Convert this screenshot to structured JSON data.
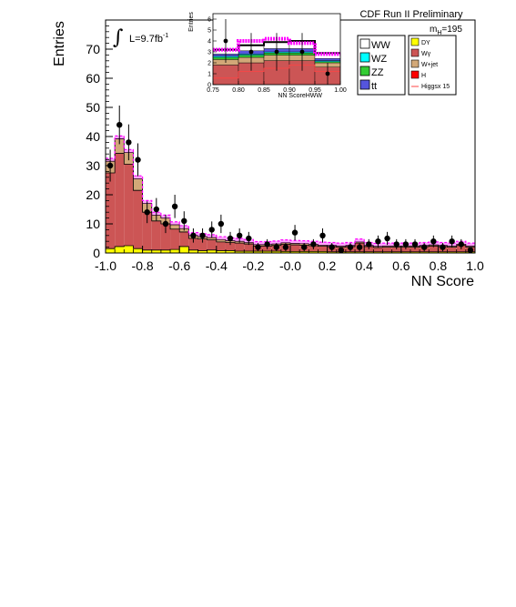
{
  "chart_data": {
    "type": "bar",
    "title": "CDF Run II Preliminary",
    "xlabel": "NN Score",
    "ylabel": "Entries",
    "xlim": [
      -1.0,
      1.0
    ],
    "ylim": [
      0,
      80
    ],
    "x_tick_labels": [
      "-1.0",
      "-0.8",
      "-0.6",
      "-0.4",
      "-0.2",
      "-0.0",
      "0.2",
      "0.4",
      "0.6",
      "0.8",
      "1.0"
    ],
    "y_tick_labels": [
      "0",
      "10",
      "20",
      "30",
      "40",
      "50",
      "60",
      "70"
    ],
    "annotations": {
      "luminosity_prefix": "L=9.7fb",
      "luminosity_exp": "-1",
      "mass_prefix": "m",
      "mass_sub": "H",
      "mass_suffix": "=195"
    },
    "bin_edges": [
      -1.0,
      -0.95,
      -0.9,
      -0.85,
      -0.8,
      -0.75,
      -0.7,
      -0.65,
      -0.6,
      -0.55,
      -0.5,
      -0.45,
      -0.4,
      -0.35,
      -0.3,
      -0.25,
      -0.2,
      -0.15,
      -0.1,
      -0.05,
      0.0,
      0.05,
      0.1,
      0.15,
      0.2,
      0.25,
      0.3,
      0.35,
      0.4,
      0.45,
      0.5,
      0.55,
      0.6,
      0.65,
      0.7,
      0.75,
      0.8,
      0.85,
      0.9,
      0.95,
      1.0
    ],
    "stack": [
      {
        "name": "DY",
        "color": "#ffff00",
        "values": [
          1.5,
          2.2,
          2.5,
          1.5,
          1.0,
          1.0,
          1.0,
          1.2,
          2.2,
          1.0,
          0.8,
          1.0,
          0.8,
          0.8,
          0.6,
          0.6,
          0.6,
          0.6,
          0.6,
          0.5,
          0.5,
          0.5,
          0.5,
          0.5,
          0.4,
          0.4,
          0.4,
          0.4,
          0.4,
          0.4,
          0.4,
          0.4,
          0.4,
          0.4,
          0.4,
          0.4,
          0.4,
          0.4,
          0.4,
          0.4
        ]
      },
      {
        "name": "Wγ",
        "color": "#cc5555",
        "values": [
          26,
          32,
          28,
          20,
          13,
          10,
          9,
          7,
          5,
          4,
          4,
          3.5,
          3,
          2.8,
          2.8,
          2.5,
          1.8,
          1.8,
          2,
          2.5,
          2.3,
          2.2,
          2,
          1.8,
          1.8,
          1.6,
          1.8,
          3,
          1.8,
          1.5,
          1.6,
          1.6,
          1.6,
          1.6,
          1.8,
          2,
          1.8,
          1.6,
          2.2,
          1.6
        ]
      },
      {
        "name": "W+jet",
        "color": "#d2a878",
        "values": [
          4,
          5,
          4,
          4,
          3,
          2,
          2,
          1.5,
          1.2,
          1,
          0.8,
          0.8,
          0.8,
          0.6,
          0.6,
          0.5,
          0.5,
          0.5,
          0.5,
          0.5,
          0.5,
          0.5,
          0.5,
          0.4,
          0.4,
          0.4,
          0.4,
          0.4,
          0.4,
          0.4,
          0.4,
          0.4,
          0.4,
          0.4,
          0.4,
          0.4,
          0.4,
          0.4,
          0.4,
          0.4
        ]
      }
    ],
    "signal": {
      "name": "Higgsx 15",
      "color": "#ff00ff",
      "values": [
        1,
        1,
        1,
        1,
        1,
        1,
        1,
        1,
        1,
        1,
        1,
        1,
        1,
        1,
        1,
        1,
        1,
        1,
        1,
        1,
        1,
        1,
        1,
        1,
        1,
        1,
        1,
        1,
        1,
        1,
        1,
        1,
        1,
        1,
        1,
        1,
        1,
        1,
        1,
        1
      ]
    },
    "data_points": {
      "x": [
        -0.975,
        -0.925,
        -0.875,
        -0.825,
        -0.775,
        -0.725,
        -0.675,
        -0.625,
        -0.575,
        -0.525,
        -0.475,
        -0.425,
        -0.375,
        -0.325,
        -0.275,
        -0.225,
        -0.175,
        -0.125,
        -0.075,
        -0.025,
        0.025,
        0.075,
        0.125,
        0.175,
        0.225,
        0.275,
        0.325,
        0.375,
        0.425,
        0.475,
        0.525,
        0.575,
        0.625,
        0.675,
        0.725,
        0.775,
        0.825,
        0.875,
        0.925,
        0.975
      ],
      "y": [
        30,
        44,
        38,
        32,
        14,
        15,
        10,
        16,
        11,
        6,
        6,
        8,
        10,
        5,
        6,
        5,
        2,
        3,
        2,
        2,
        7,
        2,
        3,
        6,
        2,
        1,
        2,
        2,
        3,
        4,
        5,
        3,
        3,
        3,
        2,
        4,
        2,
        4,
        3,
        1
      ]
    },
    "legend": {
      "left": [
        {
          "name": "WW",
          "color": "#ffffff"
        },
        {
          "name": "WZ",
          "color": "#00ffff"
        },
        {
          "name": "ZZ",
          "color": "#33cc33"
        },
        {
          "name": "tt",
          "color": "#5555dd"
        }
      ],
      "right": [
        {
          "name": "DY",
          "color": "#ffff00"
        },
        {
          "name": "Wγ",
          "color": "#cc5555"
        },
        {
          "name": "W+jet",
          "color": "#d2a878"
        },
        {
          "name": "H",
          "color": "#ff0000"
        },
        {
          "name": "Higgsx 15",
          "color": "#ff4444"
        }
      ]
    },
    "inset": {
      "xlabel": "NN ScoreHWW",
      "ylabel": "Entries",
      "xlim": [
        0.75,
        1.0
      ],
      "ylim": [
        0,
        6.5
      ],
      "x_tick_labels": [
        "0.75",
        "0.80",
        "0.85",
        "0.90",
        "0.95",
        "1.00"
      ],
      "y_tick_labels": [
        "0",
        "1",
        "2",
        "3",
        "4",
        "5",
        "6"
      ],
      "bin_edges": [
        0.75,
        0.8,
        0.85,
        0.9,
        0.95,
        1.0
      ],
      "stack": [
        {
          "name": "Wγ",
          "color": "#cc5555",
          "values": [
            1.8,
            2.0,
            2.2,
            2.2,
            1.6
          ]
        },
        {
          "name": "W+jet",
          "color": "#d2a878",
          "values": [
            0.5,
            0.5,
            0.5,
            0.5,
            0.4
          ]
        },
        {
          "name": "ZZ",
          "color": "#33cc33",
          "values": [
            0.2,
            0.2,
            0.2,
            0.2,
            0.1
          ]
        },
        {
          "name": "WZ",
          "color": "#00ffff",
          "values": [
            0.1,
            0.1,
            0.1,
            0.1,
            0.1
          ]
        },
        {
          "name": "tt",
          "color": "#5555dd",
          "values": [
            0.2,
            0.3,
            0.3,
            0.3,
            0.2
          ]
        },
        {
          "name": "WW",
          "color": "#ffffff",
          "values": [
            0.4,
            0.5,
            0.6,
            0.7,
            0.5
          ]
        }
      ],
      "signal": {
        "color": "#ff00ff",
        "values": [
          3.2,
          4.0,
          4.2,
          3.8,
          2.8
        ]
      },
      "higgs_line": {
        "color": "#ff4444",
        "values": [
          0.6,
          1.2,
          1.5,
          1.8,
          1.2
        ]
      },
      "data_points": {
        "x": [
          0.775,
          0.825,
          0.875,
          0.925,
          0.975
        ],
        "y": [
          4.0,
          3.0,
          3.0,
          3.0,
          1.0
        ]
      }
    }
  }
}
